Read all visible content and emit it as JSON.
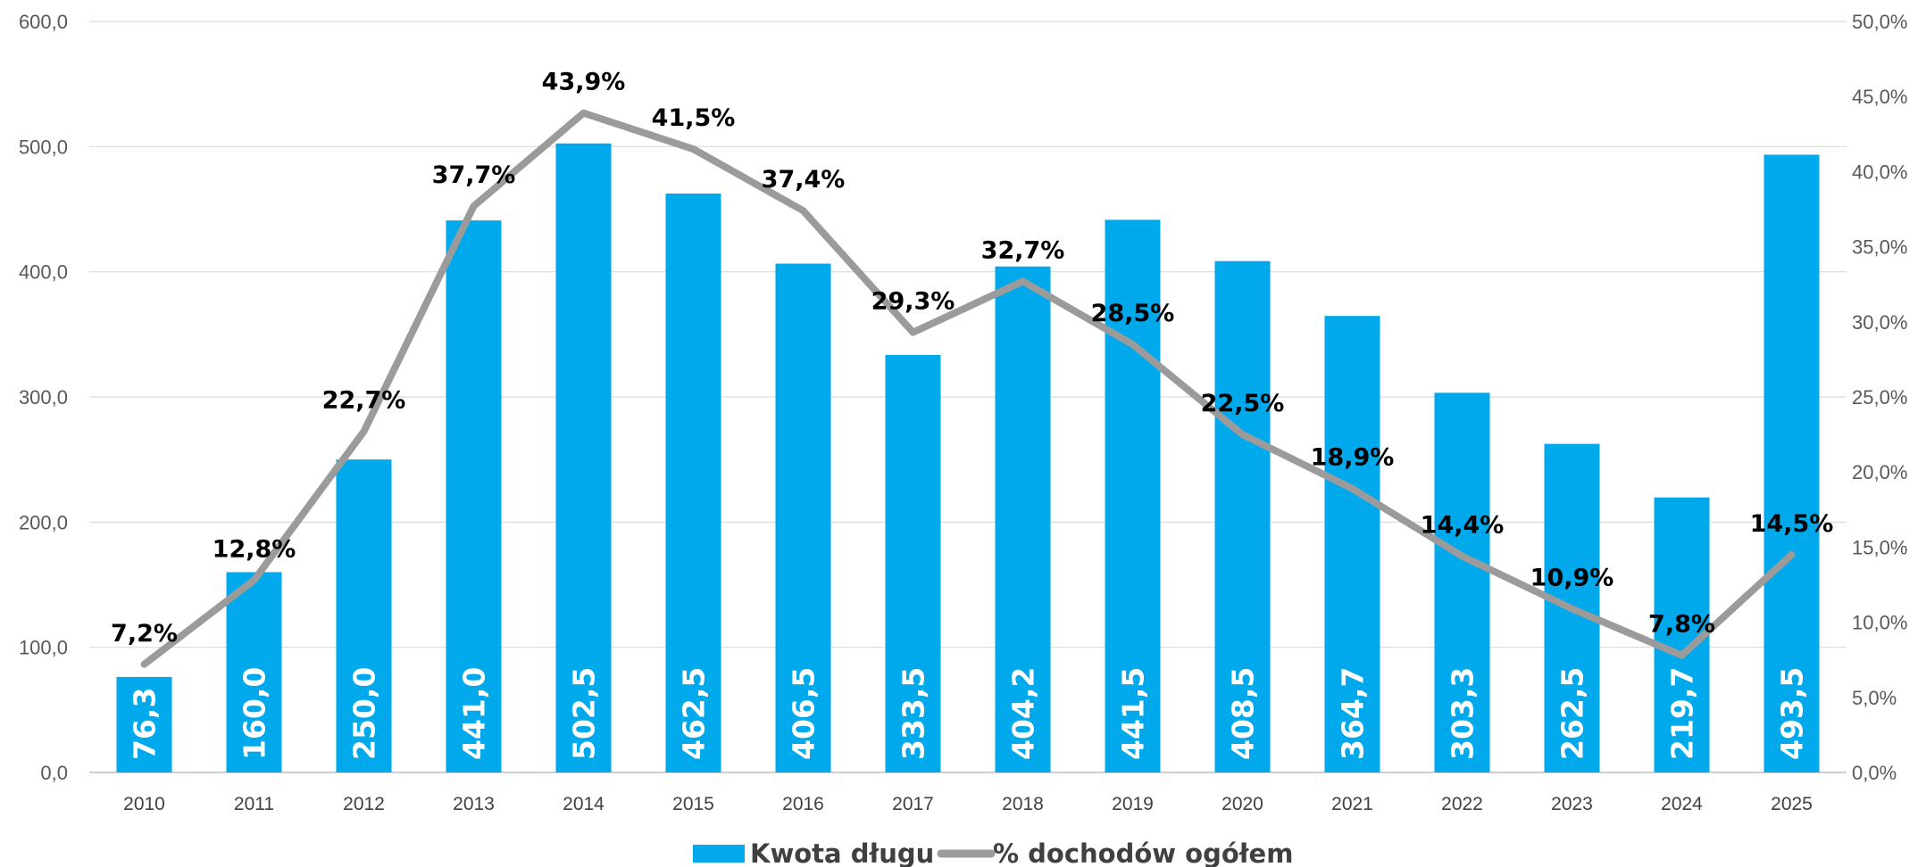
{
  "chart_data": {
    "type": "bar",
    "categories": [
      "2010",
      "2011",
      "2012",
      "2013",
      "2014",
      "2015",
      "2016",
      "2017",
      "2018",
      "2019",
      "2020",
      "2021",
      "2022",
      "2023",
      "2024",
      "2025"
    ],
    "series": [
      {
        "name": "Kwota długu",
        "type": "bar",
        "axis": "left",
        "color": "#00a9eb",
        "values": [
          76.3,
          160.0,
          250.0,
          441.0,
          502.5,
          462.5,
          406.5,
          333.5,
          404.2,
          441.5,
          408.5,
          364.7,
          303.3,
          262.5,
          219.7,
          493.5
        ],
        "labels": [
          "76,3",
          "160,0",
          "250,0",
          "441,0",
          "502,5",
          "462,5",
          "406,5",
          "333,5",
          "404,2",
          "441,5",
          "408,5",
          "364,7",
          "303,3",
          "262,5",
          "219,7",
          "493,5"
        ]
      },
      {
        "name": "% dochodów ogółem",
        "type": "line",
        "axis": "right",
        "color": "#9b9b9b",
        "values": [
          7.2,
          12.8,
          22.7,
          37.7,
          43.9,
          41.5,
          37.4,
          29.3,
          32.7,
          28.5,
          22.5,
          18.9,
          14.4,
          10.9,
          7.8,
          14.5
        ],
        "labels": [
          "7,2%",
          "12,8%",
          "22,7%",
          "37,7%",
          "43,9%",
          "41,5%",
          "37,4%",
          "29,3%",
          "32,7%",
          "28,5%",
          "22,5%",
          "18,9%",
          "14,4%",
          "10,9%",
          "7,8%",
          "14,5%"
        ]
      }
    ],
    "y_left": {
      "ylim": [
        0,
        600
      ],
      "ticks": [
        "0,0",
        "100,0",
        "200,0",
        "300,0",
        "400,0",
        "500,0",
        "600,0"
      ]
    },
    "y_right": {
      "ylim": [
        0,
        50
      ],
      "ticks": [
        "0,0%",
        "5,0%",
        "10,0%",
        "15,0%",
        "20,0%",
        "25,0%",
        "30,0%",
        "35,0%",
        "40,0%",
        "45,0%",
        "50,0%"
      ]
    },
    "title": "",
    "xlabel": "",
    "ylabel": "",
    "grid": true,
    "legend": "bottom-center"
  }
}
